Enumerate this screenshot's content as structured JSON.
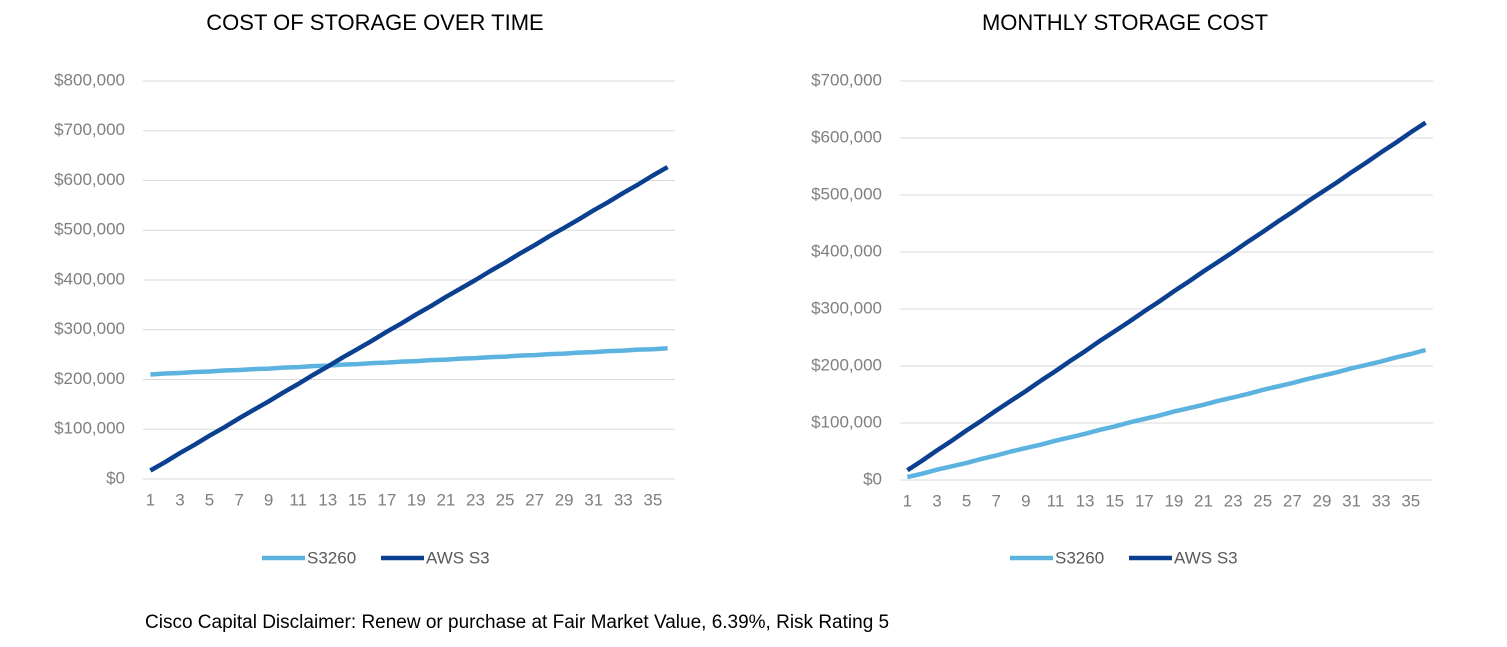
{
  "chart_data": [
    {
      "type": "line",
      "title": "COST OF STORAGE OVER TIME",
      "categories": [
        "1",
        null,
        "3",
        null,
        "5",
        null,
        "7",
        null,
        "9",
        null,
        "11",
        null,
        "13",
        null,
        "15",
        null,
        "17",
        null,
        "19",
        null,
        "21",
        null,
        "23",
        null,
        "25",
        null,
        "27",
        null,
        "29",
        null,
        "31",
        null,
        "33",
        null,
        "35",
        null
      ],
      "series": [
        {
          "name": "S3260",
          "color": "#5cb3e0",
          "values": [
            210000,
            212000,
            213000,
            215000,
            216000,
            218000,
            219000,
            221000,
            222000,
            224000,
            225000,
            227000,
            228000,
            230000,
            231000,
            233000,
            234000,
            236000,
            237000,
            239000,
            240000,
            242000,
            243000,
            245000,
            246000,
            248000,
            249000,
            251000,
            252000,
            254000,
            255000,
            257000,
            258000,
            260000,
            261000,
            263000
          ]
        },
        {
          "name": "AWS S3",
          "color": "#0b3f8f",
          "values": [
            17000,
            34000,
            52000,
            69000,
            87000,
            104000,
            122000,
            139000,
            156000,
            174000,
            191000,
            209000,
            226000,
            244000,
            261000,
            278000,
            296000,
            313000,
            331000,
            348000,
            366000,
            383000,
            400000,
            418000,
            435000,
            453000,
            470000,
            488000,
            505000,
            522000,
            540000,
            557000,
            575000,
            592000,
            610000,
            627000
          ]
        }
      ],
      "ylim": [
        0,
        800000
      ],
      "yticks": [
        {
          "value": 0,
          "label": "$0"
        },
        {
          "value": 100000,
          "label": "$100,000"
        },
        {
          "value": 200000,
          "label": "$200,000"
        },
        {
          "value": 300000,
          "label": "$300,000"
        },
        {
          "value": 400000,
          "label": "$400,000"
        },
        {
          "value": 500000,
          "label": "$500,000"
        },
        {
          "value": 600000,
          "label": "$600,000"
        },
        {
          "value": 700000,
          "label": "$700,000"
        },
        {
          "value": 800000,
          "label": "$800,000"
        }
      ],
      "grid": true,
      "legend": "bottom"
    },
    {
      "type": "line",
      "title": "MONTHLY STORAGE COST",
      "categories": [
        "1",
        null,
        "3",
        null,
        "5",
        null,
        "7",
        null,
        "9",
        null,
        "11",
        null,
        "13",
        null,
        "15",
        null,
        "17",
        null,
        "19",
        null,
        "21",
        null,
        "23",
        null,
        "25",
        null,
        "27",
        null,
        "29",
        null,
        "31",
        null,
        "33",
        null,
        "35",
        null
      ],
      "series": [
        {
          "name": "S3260",
          "color": "#5cb3e0",
          "values": [
            5000,
            11000,
            18000,
            24000,
            30000,
            37000,
            43000,
            50000,
            56000,
            62000,
            69000,
            75000,
            81000,
            88000,
            94000,
            101000,
            107000,
            113000,
            120000,
            126000,
            132000,
            139000,
            145000,
            151000,
            158000,
            164000,
            170000,
            177000,
            183000,
            189000,
            196000,
            202000,
            208000,
            215000,
            221000,
            228000
          ]
        },
        {
          "name": "AWS S3",
          "color": "#0b3f8f",
          "values": [
            17000,
            34000,
            52000,
            69000,
            87000,
            104000,
            122000,
            139000,
            156000,
            174000,
            191000,
            209000,
            226000,
            244000,
            261000,
            278000,
            296000,
            313000,
            331000,
            348000,
            366000,
            383000,
            400000,
            418000,
            435000,
            453000,
            470000,
            488000,
            505000,
            522000,
            540000,
            557000,
            575000,
            592000,
            610000,
            627000
          ]
        }
      ],
      "ylim": [
        0,
        700000
      ],
      "yticks": [
        {
          "value": 0,
          "label": "$0"
        },
        {
          "value": 100000,
          "label": "$100,000"
        },
        {
          "value": 200000,
          "label": "$200,000"
        },
        {
          "value": 300000,
          "label": "$300,000"
        },
        {
          "value": 400000,
          "label": "$400,000"
        },
        {
          "value": 500000,
          "label": "$500,000"
        },
        {
          "value": 600000,
          "label": "$600,000"
        },
        {
          "value": 700000,
          "label": "$700,000"
        }
      ],
      "grid": true,
      "legend": "bottom"
    }
  ],
  "footnote": "Cisco Capital Disclaimer: Renew or purchase at Fair Market Value, 6.39%, Risk Rating 5"
}
